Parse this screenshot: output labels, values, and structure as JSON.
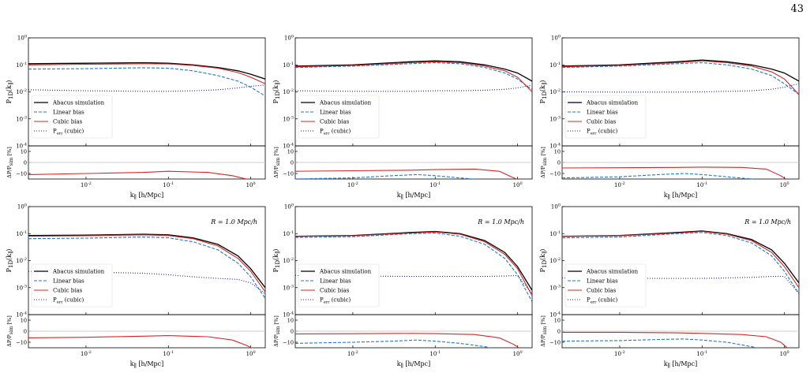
{
  "page_number": "43",
  "colors": {
    "abacus": "#000000",
    "linear": "#1f77d4",
    "cubic": "#d62728",
    "perr": "#1a237e",
    "zero_line": "#bbbbbb"
  },
  "text": {
    "top_ylabel_html": "P<tspan font-size='7' dy='2'>1D</tspan><tspan dy='-2'>(k</tspan><tspan font-size='7' dy='2'>∥</tspan><tspan dy='-2'>)</tspan>",
    "bottom_ylabel_html": "ΔP/P<tspan font-size='6' dy='2'>sim</tspan><tspan dy='-2'> [%]</tspan>",
    "xlabel_html": "k<tspan font-size='7' dy='2'>∥</tspan><tspan dy='-2'> [h/Mpc]</tspan>",
    "legend": [
      "Abacus simulation",
      "Linear bias",
      "Cubic bias",
      "P_err (cubic)"
    ],
    "annotation": "R = 1.0 Mpc/h",
    "top_yticks": [
      "10^0",
      "10^-1",
      "10^-2",
      "10^-3",
      "10^-4"
    ],
    "bottom_yticks": [
      "10",
      "0",
      "−10"
    ],
    "xticks": [
      "10^-2",
      "10^-1",
      "10^0"
    ]
  },
  "chart_data": [
    {
      "type": "line",
      "xscale": "log",
      "yscale": "log",
      "xlim": [
        0.002,
        1.5
      ],
      "ylim": [
        0.0001,
        1
      ],
      "residual_ylim": [
        -15,
        15
      ],
      "annotation": "",
      "series": [
        {
          "name": "Abacus simulation",
          "x": [
            0.002,
            0.01,
            0.05,
            0.1,
            0.2,
            0.4,
            0.7,
            1,
            1.5
          ],
          "y": [
            0.11,
            0.115,
            0.12,
            0.115,
            0.1,
            0.08,
            0.06,
            0.045,
            0.03
          ]
        },
        {
          "name": "Linear bias",
          "x": [
            0.002,
            0.01,
            0.05,
            0.1,
            0.2,
            0.4,
            0.7,
            1,
            1.5
          ],
          "y": [
            0.07,
            0.072,
            0.078,
            0.075,
            0.06,
            0.04,
            0.025,
            0.015,
            0.007
          ]
        },
        {
          "name": "Cubic bias",
          "x": [
            0.002,
            0.01,
            0.05,
            0.1,
            0.2,
            0.4,
            0.7,
            1,
            1.5
          ],
          "y": [
            0.1,
            0.105,
            0.11,
            0.108,
            0.095,
            0.075,
            0.052,
            0.035,
            0.02
          ]
        },
        {
          "name": "P_err (cubic)",
          "x": [
            0.002,
            0.01,
            0.05,
            0.1,
            0.2,
            0.4,
            0.7,
            1,
            1.5
          ],
          "y": [
            0.012,
            0.011,
            0.0105,
            0.0105,
            0.011,
            0.012,
            0.014,
            0.016,
            0.018
          ]
        }
      ],
      "residuals": [
        {
          "name": "Linear bias",
          "x": [],
          "y": []
        },
        {
          "name": "Cubic bias",
          "x": [
            0.002,
            0.01,
            0.05,
            0.1,
            0.3,
            0.6,
            1
          ],
          "y": [
            -11,
            -10,
            -9,
            -8,
            -9,
            -12,
            -16
          ]
        }
      ]
    },
    {
      "type": "line",
      "xscale": "log",
      "yscale": "log",
      "xlim": [
        0.002,
        1.5
      ],
      "ylim": [
        0.0001,
        1
      ],
      "residual_ylim": [
        -15,
        15
      ],
      "annotation": "",
      "series": [
        {
          "name": "Abacus simulation",
          "x": [
            0.002,
            0.01,
            0.05,
            0.1,
            0.2,
            0.4,
            0.7,
            1,
            1.5
          ],
          "y": [
            0.09,
            0.1,
            0.13,
            0.14,
            0.13,
            0.1,
            0.07,
            0.05,
            0.025
          ]
        },
        {
          "name": "Linear bias",
          "x": [
            0.002,
            0.01,
            0.05,
            0.1,
            0.2,
            0.4,
            0.7,
            1,
            1.5
          ],
          "y": [
            0.08,
            0.09,
            0.11,
            0.12,
            0.11,
            0.08,
            0.05,
            0.03,
            0.012
          ]
        },
        {
          "name": "Cubic bias",
          "x": [
            0.002,
            0.01,
            0.05,
            0.1,
            0.2,
            0.4,
            0.7,
            1,
            1.5
          ],
          "y": [
            0.085,
            0.095,
            0.12,
            0.13,
            0.12,
            0.09,
            0.06,
            0.035,
            0.01
          ]
        },
        {
          "name": "P_err (cubic)",
          "x": [
            0.002,
            0.01,
            0.05,
            0.1,
            0.2,
            0.4,
            0.7,
            1,
            1.5
          ],
          "y": [
            0.011,
            0.0105,
            0.0105,
            0.011,
            0.011,
            0.0115,
            0.0125,
            0.014,
            0.018
          ]
        }
      ],
      "residuals": [
        {
          "name": "Linear bias",
          "x": [
            0.002,
            0.01,
            0.03,
            0.06,
            0.1,
            0.2,
            0.4,
            0.7,
            1
          ],
          "y": [
            -15,
            -14,
            -12,
            -11,
            -12,
            -14,
            -16,
            -17,
            -18
          ]
        },
        {
          "name": "Cubic bias",
          "x": [
            0.002,
            0.01,
            0.05,
            0.1,
            0.3,
            0.6,
            0.9,
            1.2
          ],
          "y": [
            -8,
            -7.5,
            -7,
            -6.5,
            -6,
            -8,
            -14,
            -18
          ]
        }
      ]
    },
    {
      "type": "line",
      "xscale": "log",
      "yscale": "log",
      "xlim": [
        0.002,
        1.5
      ],
      "ylim": [
        0.0001,
        1
      ],
      "residual_ylim": [
        -15,
        15
      ],
      "annotation": "",
      "series": [
        {
          "name": "Abacus simulation",
          "x": [
            0.002,
            0.01,
            0.05,
            0.1,
            0.2,
            0.4,
            0.7,
            1,
            1.5
          ],
          "y": [
            0.09,
            0.1,
            0.13,
            0.15,
            0.13,
            0.1,
            0.07,
            0.05,
            0.025
          ]
        },
        {
          "name": "Linear bias",
          "x": [
            0.002,
            0.01,
            0.05,
            0.1,
            0.2,
            0.4,
            0.7,
            1,
            1.5
          ],
          "y": [
            0.08,
            0.09,
            0.11,
            0.12,
            0.1,
            0.07,
            0.04,
            0.02,
            0.008
          ]
        },
        {
          "name": "Cubic bias",
          "x": [
            0.002,
            0.01,
            0.05,
            0.1,
            0.2,
            0.4,
            0.7,
            1,
            1.5
          ],
          "y": [
            0.085,
            0.095,
            0.12,
            0.14,
            0.12,
            0.09,
            0.055,
            0.03,
            0.008
          ]
        },
        {
          "name": "P_err (cubic)",
          "x": [
            0.002,
            0.01,
            0.05,
            0.1,
            0.2,
            0.4,
            0.7,
            1,
            1.5
          ],
          "y": [
            0.01,
            0.0098,
            0.0098,
            0.01,
            0.0105,
            0.011,
            0.0125,
            0.015,
            0.02
          ]
        }
      ],
      "residuals": [
        {
          "name": "Linear bias",
          "x": [
            0.002,
            0.01,
            0.03,
            0.06,
            0.1,
            0.2,
            0.4,
            0.7,
            1
          ],
          "y": [
            -14,
            -13,
            -11,
            -10,
            -11,
            -13,
            -15,
            -17,
            -18
          ]
        },
        {
          "name": "Cubic bias",
          "x": [
            0.002,
            0.01,
            0.05,
            0.1,
            0.3,
            0.6,
            0.9,
            1.2
          ],
          "y": [
            -5,
            -4.8,
            -4.5,
            -4.2,
            -4.5,
            -6,
            -12,
            -18
          ]
        }
      ]
    },
    {
      "type": "line",
      "xscale": "log",
      "yscale": "log",
      "xlim": [
        0.002,
        1.5
      ],
      "ylim": [
        0.0001,
        1
      ],
      "residual_ylim": [
        -15,
        15
      ],
      "annotation": "R = 1.0 Mpc/h",
      "series": [
        {
          "name": "Abacus simulation",
          "x": [
            0.002,
            0.01,
            0.05,
            0.1,
            0.2,
            0.4,
            0.7,
            1,
            1.5
          ],
          "y": [
            0.085,
            0.088,
            0.095,
            0.09,
            0.07,
            0.04,
            0.015,
            0.005,
            0.001
          ]
        },
        {
          "name": "Linear bias",
          "x": [
            0.002,
            0.01,
            0.05,
            0.1,
            0.2,
            0.4,
            0.7,
            1,
            1.5
          ],
          "y": [
            0.065,
            0.068,
            0.075,
            0.07,
            0.05,
            0.025,
            0.008,
            0.0025,
            0.0004
          ]
        },
        {
          "name": "Cubic bias",
          "x": [
            0.002,
            0.01,
            0.05,
            0.1,
            0.2,
            0.4,
            0.7,
            1,
            1.5
          ],
          "y": [
            0.08,
            0.083,
            0.09,
            0.085,
            0.065,
            0.035,
            0.012,
            0.004,
            0.0007
          ]
        },
        {
          "name": "P_err (cubic)",
          "x": [
            0.002,
            0.01,
            0.05,
            0.1,
            0.2,
            0.4,
            0.7,
            1,
            1.5
          ],
          "y": [
            0.004,
            0.0038,
            0.0034,
            0.003,
            0.0025,
            0.0022,
            0.002,
            0.0015,
            0.0006
          ]
        }
      ],
      "residuals": [
        {
          "name": "Linear bias",
          "x": [],
          "y": []
        },
        {
          "name": "Cubic bias",
          "x": [
            0.002,
            0.01,
            0.05,
            0.1,
            0.3,
            0.6,
            0.9,
            1.2
          ],
          "y": [
            -6,
            -5.5,
            -4.5,
            -4,
            -5,
            -8,
            -13,
            -18
          ]
        }
      ]
    },
    {
      "type": "line",
      "xscale": "log",
      "yscale": "log",
      "xlim": [
        0.002,
        1.5
      ],
      "ylim": [
        0.0001,
        1
      ],
      "residual_ylim": [
        -15,
        15
      ],
      "annotation": "R = 1.0 Mpc/h",
      "series": [
        {
          "name": "Abacus simulation",
          "x": [
            0.002,
            0.01,
            0.05,
            0.1,
            0.2,
            0.4,
            0.7,
            1,
            1.5
          ],
          "y": [
            0.08,
            0.085,
            0.11,
            0.12,
            0.1,
            0.055,
            0.02,
            0.006,
            0.0008
          ]
        },
        {
          "name": "Linear bias",
          "x": [
            0.002,
            0.01,
            0.05,
            0.1,
            0.2,
            0.4,
            0.7,
            1,
            1.5
          ],
          "y": [
            0.072,
            0.077,
            0.1,
            0.105,
            0.08,
            0.04,
            0.012,
            0.003,
            0.0003
          ]
        },
        {
          "name": "Cubic bias",
          "x": [
            0.002,
            0.01,
            0.05,
            0.1,
            0.2,
            0.4,
            0.7,
            1,
            1.5
          ],
          "y": [
            0.078,
            0.083,
            0.105,
            0.115,
            0.095,
            0.05,
            0.017,
            0.005,
            0.0005
          ]
        },
        {
          "name": "P_err (cubic)",
          "x": [
            0.002,
            0.01,
            0.05,
            0.1,
            0.2,
            0.4,
            0.7,
            1,
            1.5
          ],
          "y": [
            0.0028,
            0.0027,
            0.0026,
            0.0026,
            0.0026,
            0.0026,
            0.0027,
            0.0028,
            0.0006
          ]
        }
      ],
      "residuals": [
        {
          "name": "Linear bias",
          "x": [
            0.002,
            0.01,
            0.03,
            0.06,
            0.1,
            0.2,
            0.4,
            0.7
          ],
          "y": [
            -11,
            -10,
            -9,
            -8,
            -9,
            -11,
            -14,
            -18
          ]
        },
        {
          "name": "Cubic bias",
          "x": [
            0.002,
            0.01,
            0.05,
            0.1,
            0.3,
            0.6,
            0.9,
            1.2
          ],
          "y": [
            -2.5,
            -2.3,
            -2,
            -2.2,
            -3,
            -6,
            -12,
            -18
          ]
        }
      ]
    },
    {
      "type": "line",
      "xscale": "log",
      "yscale": "log",
      "xlim": [
        0.002,
        1.5
      ],
      "ylim": [
        0.0001,
        1
      ],
      "residual_ylim": [
        -15,
        15
      ],
      "annotation": "R = 1.0 Mpc/h",
      "series": [
        {
          "name": "Abacus simulation",
          "x": [
            0.002,
            0.01,
            0.05,
            0.1,
            0.2,
            0.4,
            0.7,
            1,
            1.5
          ],
          "y": [
            0.08,
            0.085,
            0.11,
            0.125,
            0.1,
            0.06,
            0.025,
            0.008,
            0.0015
          ]
        },
        {
          "name": "Linear bias",
          "x": [
            0.002,
            0.01,
            0.05,
            0.1,
            0.2,
            0.4,
            0.7,
            1,
            1.5
          ],
          "y": [
            0.07,
            0.075,
            0.1,
            0.11,
            0.085,
            0.045,
            0.015,
            0.004,
            0.0006
          ]
        },
        {
          "name": "Cubic bias",
          "x": [
            0.002,
            0.01,
            0.05,
            0.1,
            0.2,
            0.4,
            0.7,
            1,
            1.5
          ],
          "y": [
            0.078,
            0.083,
            0.105,
            0.12,
            0.095,
            0.055,
            0.02,
            0.006,
            0.001
          ]
        },
        {
          "name": "P_err (cubic)",
          "x": [
            0.002,
            0.01,
            0.05,
            0.1,
            0.2,
            0.4,
            0.7,
            1,
            1.5
          ],
          "y": [
            0.0023,
            0.0022,
            0.0022,
            0.0022,
            0.0023,
            0.0024,
            0.0026,
            0.0026,
            0.0006
          ]
        }
      ],
      "residuals": [
        {
          "name": "Linear bias",
          "x": [
            0.002,
            0.01,
            0.03,
            0.06,
            0.1,
            0.2,
            0.4,
            0.7
          ],
          "y": [
            -9,
            -8.5,
            -7.5,
            -7,
            -8,
            -10,
            -14,
            -18
          ]
        },
        {
          "name": "Cubic bias",
          "x": [
            0.002,
            0.01,
            0.05,
            0.1,
            0.3,
            0.6,
            0.9,
            1.2
          ],
          "y": [
            -1,
            -1,
            -1.5,
            -2,
            -3,
            -5,
            -10,
            -18
          ]
        }
      ]
    }
  ]
}
